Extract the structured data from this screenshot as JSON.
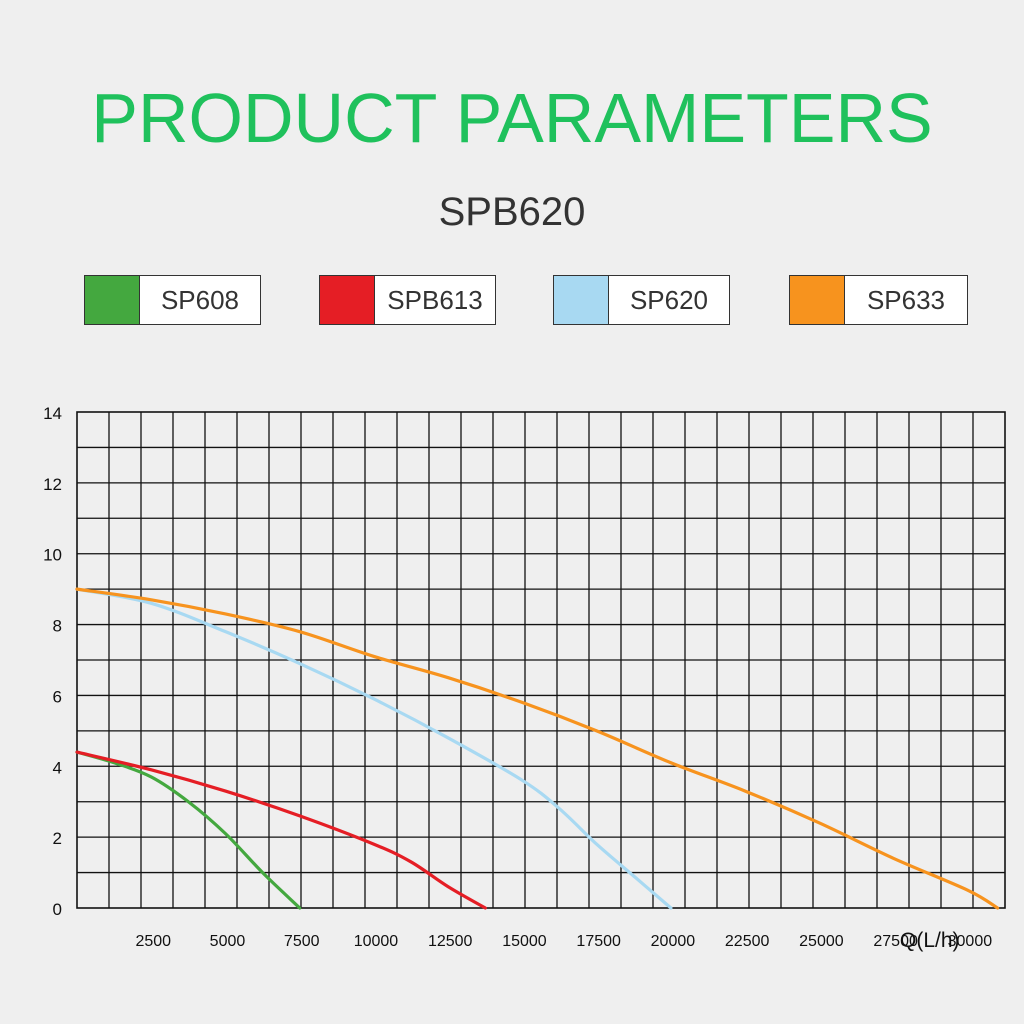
{
  "header": {
    "title": "PRODUCT PARAMETERS"
  },
  "chart_data": {
    "type": "line",
    "title": "SPB620",
    "xlabel": "Q(L/h)",
    "ylabel": "",
    "xlim": [
      0,
      31250
    ],
    "ylim": [
      0,
      14
    ],
    "x_ticks": [
      2500,
      5000,
      7500,
      10000,
      12500,
      15000,
      17500,
      20000,
      22500,
      25000,
      27500,
      30000
    ],
    "y_ticks": [
      0,
      2,
      4,
      6,
      8,
      10,
      12,
      14
    ],
    "grid": true,
    "legend_position": "top",
    "series": [
      {
        "name": "SP608",
        "color": "#44a83f",
        "points": [
          [
            0,
            4.4
          ],
          [
            1250,
            4.1
          ],
          [
            2500,
            3.7
          ],
          [
            3750,
            3.0
          ],
          [
            5000,
            2.1
          ],
          [
            6250,
            1.0
          ],
          [
            7500,
            0
          ]
        ]
      },
      {
        "name": "SPB613",
        "color": "#e51e25",
        "points": [
          [
            0,
            4.4
          ],
          [
            2500,
            3.9
          ],
          [
            5000,
            3.3
          ],
          [
            7500,
            2.6
          ],
          [
            10000,
            1.8
          ],
          [
            11250,
            1.3
          ],
          [
            12500,
            0.6
          ],
          [
            13750,
            0
          ]
        ]
      },
      {
        "name": "SP620",
        "color": "#a8d9f2",
        "points": [
          [
            0,
            9.0
          ],
          [
            2500,
            8.6
          ],
          [
            5000,
            7.8
          ],
          [
            7500,
            6.9
          ],
          [
            10000,
            5.9
          ],
          [
            12500,
            4.8
          ],
          [
            15000,
            3.6
          ],
          [
            16250,
            2.8
          ],
          [
            17500,
            1.8
          ],
          [
            18750,
            0.9
          ],
          [
            20000,
            0
          ]
        ]
      },
      {
        "name": "SP633",
        "color": "#f7931e",
        "points": [
          [
            0,
            9.0
          ],
          [
            2500,
            8.7
          ],
          [
            5000,
            8.3
          ],
          [
            7500,
            7.8
          ],
          [
            10000,
            7.1
          ],
          [
            12500,
            6.5
          ],
          [
            15000,
            5.8
          ],
          [
            17500,
            5.0
          ],
          [
            20000,
            4.1
          ],
          [
            22500,
            3.3
          ],
          [
            25000,
            2.4
          ],
          [
            27500,
            1.4
          ],
          [
            30000,
            0.5
          ],
          [
            31000,
            0
          ]
        ]
      }
    ]
  }
}
